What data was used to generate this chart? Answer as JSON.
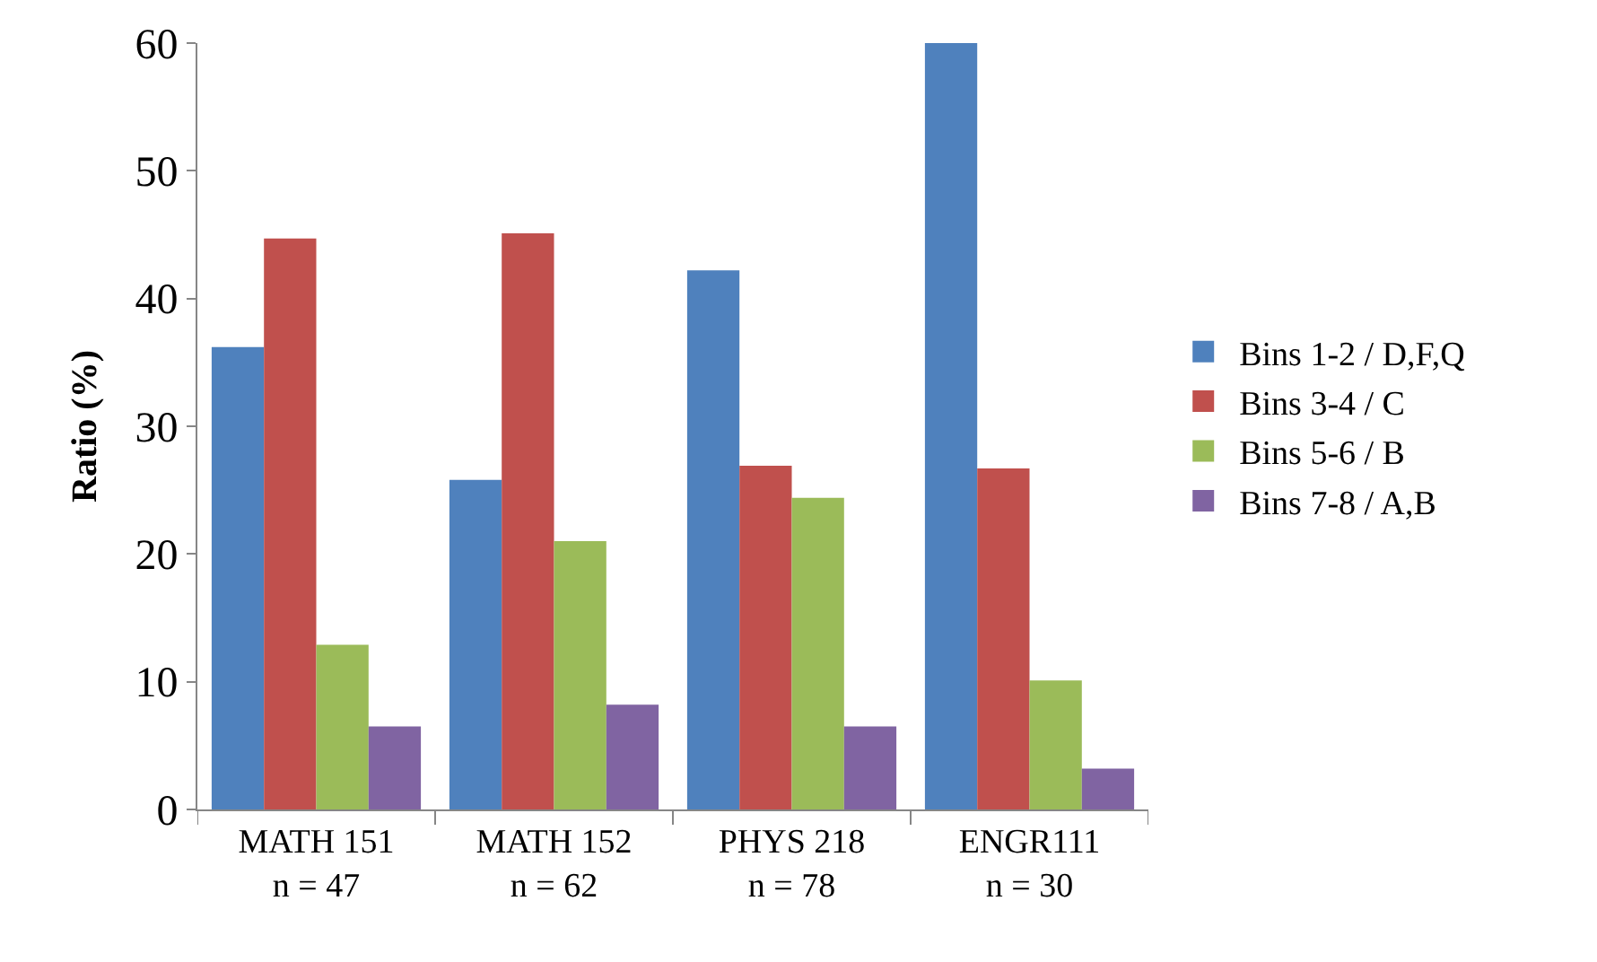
{
  "chart_data": {
    "type": "bar",
    "ylabel": "Ratio (%)",
    "categories": [
      "MATH 151\nn = 47",
      "MATH 152\nn = 62",
      "PHYS 218\nn = 78",
      "ENGR111\nn = 30"
    ],
    "series": [
      {
        "name": "Bins 1-2 / D,F,Q",
        "color": "#4f81bd",
        "values": [
          36.2,
          25.8,
          42.2,
          60
        ]
      },
      {
        "name": "Bins 3-4 / C",
        "color": "#c0504d",
        "values": [
          44.7,
          45.1,
          26.9,
          26.7
        ]
      },
      {
        "name": "Bins 5-6 / B",
        "color": "#9bbb59",
        "values": [
          12.9,
          21.0,
          24.4,
          10.1
        ]
      },
      {
        "name": "Bins 7-8 / A,B",
        "color": "#8064a2",
        "values": [
          6.5,
          8.2,
          6.5,
          3.2
        ]
      }
    ],
    "ylim": [
      0,
      60
    ],
    "yticks": [
      0,
      10,
      20,
      30,
      40,
      50,
      60
    ],
    "legend": "right"
  }
}
